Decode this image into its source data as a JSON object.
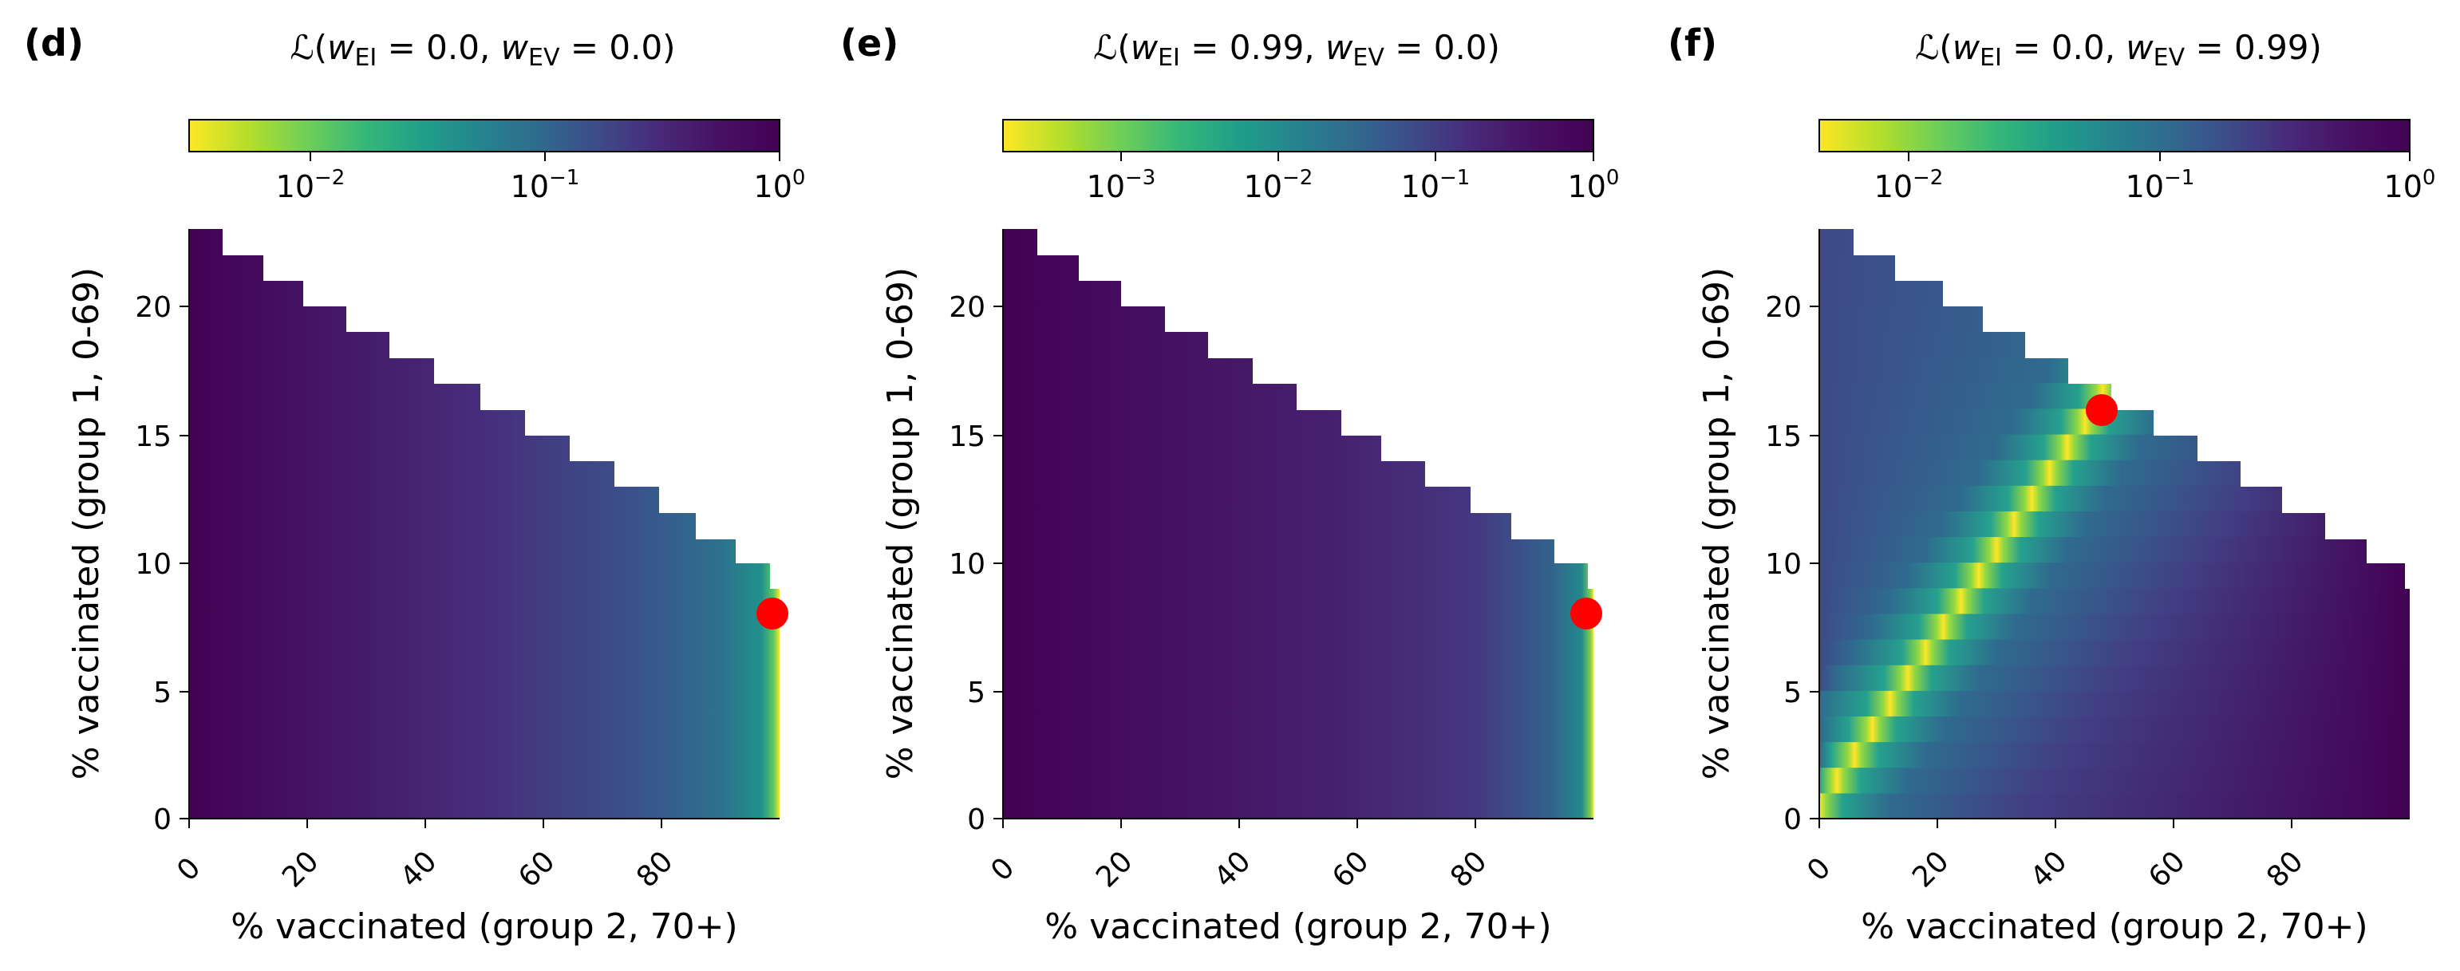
{
  "figure": {
    "panels": [
      {
        "panel_label": "(d)",
        "title": {
          "base": "ℒ(",
          "w1": "w",
          "s1": "EI",
          "eq1": " = 0.0, ",
          "w2": "w",
          "s2": "EV",
          "eq2": " = 0.0)"
        }
      },
      {
        "panel_label": "(e)",
        "title": {
          "base": "ℒ(",
          "w1": "w",
          "s1": "EI",
          "eq1": " = 0.99, ",
          "w2": "w",
          "s2": "EV",
          "eq2": " = 0.0)"
        }
      },
      {
        "panel_label": "(f)",
        "title": {
          "base": "ℒ(",
          "w1": "w",
          "s1": "EI",
          "eq1": " = 0.0, ",
          "w2": "w",
          "s2": "EV",
          "eq2": " = 0.99)"
        }
      }
    ]
  },
  "chart_data": [
    {
      "type": "heatmap",
      "panel": "d",
      "xlabel": "% vaccinated (group 2, 70+)",
      "ylabel": "% vaccinated (group 1, 0-69)",
      "xlim": [
        0,
        100
      ],
      "ylim": [
        0,
        23
      ],
      "x_ticks": [
        "0",
        "20",
        "40",
        "60",
        "80"
      ],
      "y_ticks": [
        "0",
        "5",
        "10",
        "15",
        "20"
      ],
      "colormap": "viridis_r",
      "color_scale": "log",
      "colorbar_range": [
        0.003,
        1.0
      ],
      "colorbar_ticks": [
        {
          "base": "10",
          "exp": "−2",
          "value": 0.01
        },
        {
          "base": "10",
          "exp": "−1",
          "value": 0.1
        },
        {
          "base": "10",
          "exp": "0",
          "value": 1
        }
      ],
      "boundary_max_y_per_x_step": [
        23,
        22,
        21,
        20,
        19,
        18,
        17,
        16,
        15,
        14,
        13,
        12,
        11,
        10,
        9
      ],
      "optimum_marker": {
        "x": 99,
        "y": 8,
        "color": "#ff0000"
      },
      "description_pattern": "loss decreases with group-2 vaccination; minimum at right edge"
    },
    {
      "type": "heatmap",
      "panel": "e",
      "xlabel": "% vaccinated (group 2, 70+)",
      "ylabel": "% vaccinated (group 1, 0-69)",
      "xlim": [
        0,
        100
      ],
      "ylim": [
        0,
        23
      ],
      "x_ticks": [
        "0",
        "20",
        "40",
        "60",
        "80"
      ],
      "y_ticks": [
        "0",
        "5",
        "10",
        "15",
        "20"
      ],
      "colormap": "viridis_r",
      "color_scale": "log",
      "colorbar_range": [
        0.0002,
        1.0
      ],
      "colorbar_ticks": [
        {
          "base": "10",
          "exp": "−3",
          "value": 0.001
        },
        {
          "base": "10",
          "exp": "−2",
          "value": 0.01
        },
        {
          "base": "10",
          "exp": "−1",
          "value": 0.1
        },
        {
          "base": "10",
          "exp": "0",
          "value": 1
        }
      ],
      "boundary_max_y_per_x_step": [
        23,
        22,
        21,
        20,
        19,
        18,
        17,
        16,
        15,
        14,
        13,
        12,
        11,
        10,
        9
      ],
      "optimum_marker": {
        "x": 99,
        "y": 8,
        "color": "#ff0000"
      },
      "description_pattern": "loss decreases with group-2 vaccination; minimum at right edge"
    },
    {
      "type": "heatmap",
      "panel": "f",
      "xlabel": "% vaccinated (group 2, 70+)",
      "ylabel": "% vaccinated (group 1, 0-69)",
      "xlim": [
        0,
        100
      ],
      "ylim": [
        0,
        23
      ],
      "x_ticks": [
        "0",
        "20",
        "40",
        "60",
        "80"
      ],
      "y_ticks": [
        "0",
        "5",
        "10",
        "15",
        "20"
      ],
      "colormap": "viridis_r",
      "color_scale": "log",
      "colorbar_range": [
        0.0045,
        1.0
      ],
      "colorbar_ticks": [
        {
          "base": "10",
          "exp": "−2",
          "value": 0.01
        },
        {
          "base": "10",
          "exp": "−1",
          "value": 0.1
        },
        {
          "base": "10",
          "exp": "0",
          "value": 1
        }
      ],
      "boundary_max_y_per_x_step": [
        23,
        22,
        21,
        20,
        19,
        18,
        17,
        16,
        15,
        14,
        13,
        12,
        11,
        10,
        9
      ],
      "optimum_marker": {
        "x": 48,
        "y": 16,
        "color": "#ff0000"
      },
      "minimum_ridge": "diagonal valley from (0,0) to (48,16), x ≈ 3 × y",
      "description_pattern": "narrow diagonal valley of low loss"
    }
  ]
}
